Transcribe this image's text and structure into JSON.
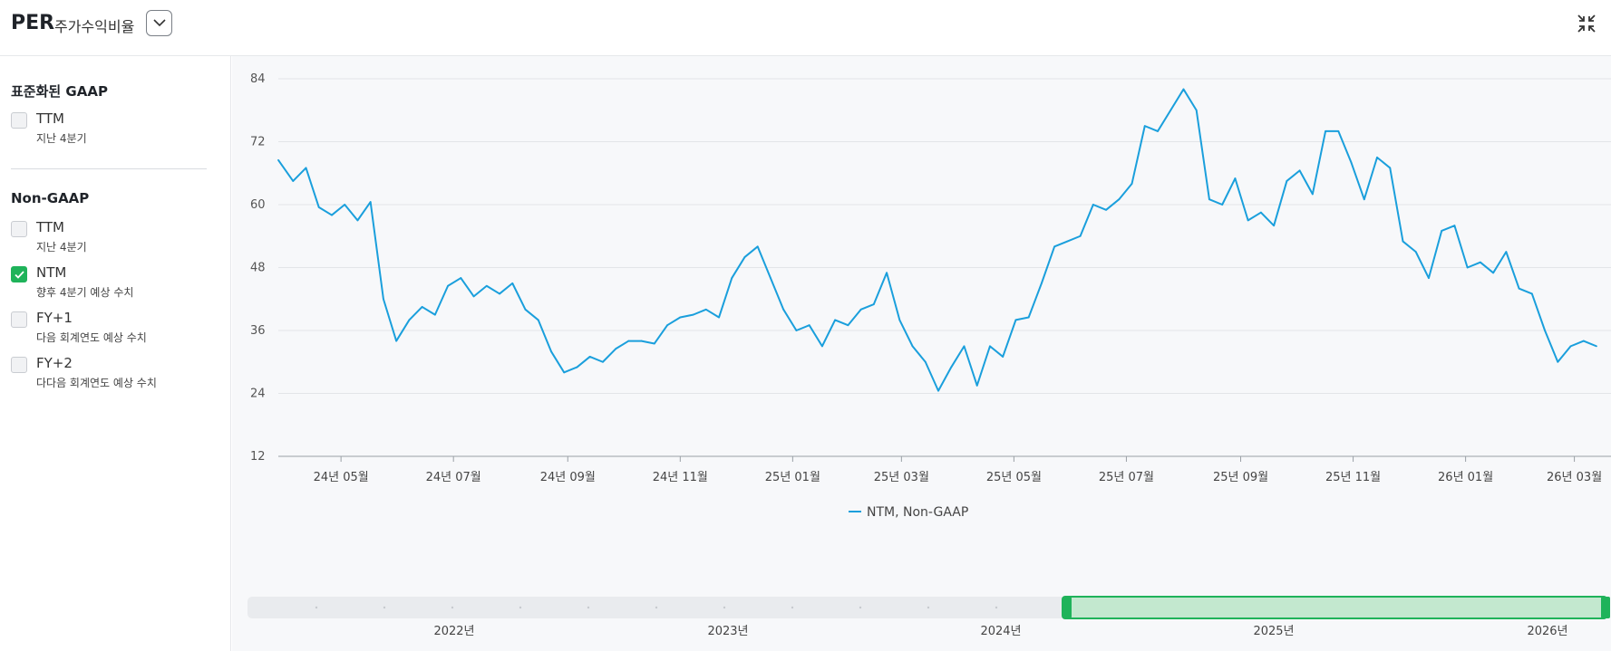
{
  "header": {
    "title": "PER",
    "subtitle": "주가수익비율",
    "dropdown_icon": "chevron-down-icon",
    "collapse_icon": "collapse-icon"
  },
  "sidebar": {
    "gaap_title": "표준화된 GAAP",
    "gaap_options": [
      {
        "label": "TTM",
        "sub": "지난 4분기",
        "checked": false
      }
    ],
    "nongaap_title": "Non-GAAP",
    "nongaap_options": [
      {
        "label": "TTM",
        "sub": "지난 4분기",
        "checked": false
      },
      {
        "label": "NTM",
        "sub": "향후 4분기 예상 수치",
        "checked": true
      },
      {
        "label": "FY+1",
        "sub": "다음 회계연도 예상 수치",
        "checked": false
      },
      {
        "label": "FY+2",
        "sub": "다다음 회계연도 예상 수치",
        "checked": false
      }
    ]
  },
  "colors": {
    "line": "#1a9fdc",
    "accent": "#1fb35a",
    "navigator_fill": "#c3e8cf"
  },
  "chart_data": {
    "type": "line",
    "ylim": [
      12,
      84
    ],
    "yticks": [
      12,
      24,
      36,
      48,
      60,
      72,
      84
    ],
    "x_ticks": [
      "24년 05월",
      "24년 07월",
      "24년 09월",
      "24년 11월",
      "25년 01월",
      "25년 03월",
      "25년 05월",
      "25년 07월",
      "25년 09월",
      "25년 11월",
      "26년 01월",
      "26년 03월"
    ],
    "series": [
      {
        "name": "NTM, Non-GAAP",
        "x": [
          "2024-03-28",
          "2024-04-05",
          "2024-04-12",
          "2024-04-19",
          "2024-04-26",
          "2024-05-03",
          "2024-05-10",
          "2024-05-17",
          "2024-05-24",
          "2024-05-31",
          "2024-06-07",
          "2024-06-14",
          "2024-06-21",
          "2024-06-28",
          "2024-07-05",
          "2024-07-12",
          "2024-07-19",
          "2024-07-26",
          "2024-08-02",
          "2024-08-09",
          "2024-08-16",
          "2024-08-23",
          "2024-08-30",
          "2024-09-06",
          "2024-09-13",
          "2024-09-20",
          "2024-09-27",
          "2024-10-04",
          "2024-10-11",
          "2024-10-18",
          "2024-10-25",
          "2024-11-01",
          "2024-11-08",
          "2024-11-15",
          "2024-11-22",
          "2024-11-29",
          "2024-12-06",
          "2024-12-13",
          "2024-12-20",
          "2024-12-27",
          "2025-01-03",
          "2025-01-10",
          "2025-01-17",
          "2025-01-24",
          "2025-01-31",
          "2025-02-07",
          "2025-02-14",
          "2025-02-21",
          "2025-02-28",
          "2025-03-07",
          "2025-03-14",
          "2025-03-21",
          "2025-03-28",
          "2025-04-04",
          "2025-04-11",
          "2025-04-18",
          "2025-04-25",
          "2025-05-02",
          "2025-05-09",
          "2025-05-16",
          "2025-05-23",
          "2025-05-30",
          "2025-06-06",
          "2025-06-13",
          "2025-06-20",
          "2025-06-27",
          "2025-07-04",
          "2025-07-11",
          "2025-07-18",
          "2025-07-25",
          "2025-08-01",
          "2025-08-08",
          "2025-08-15",
          "2025-08-22",
          "2025-08-29",
          "2025-09-05",
          "2025-09-12",
          "2025-09-19",
          "2025-09-26",
          "2025-10-03",
          "2025-10-10",
          "2025-10-17",
          "2025-10-24",
          "2025-10-31",
          "2025-11-07",
          "2025-11-14",
          "2025-11-21",
          "2025-11-28",
          "2025-12-05",
          "2025-12-12",
          "2025-12-19",
          "2025-12-26",
          "2026-01-02",
          "2026-01-09",
          "2026-01-16",
          "2026-01-23",
          "2026-01-30",
          "2026-02-06",
          "2026-02-13",
          "2026-02-20",
          "2026-02-27",
          "2026-03-06",
          "2026-03-13"
        ],
        "values": [
          68.5,
          64.5,
          67,
          59.5,
          58,
          60,
          57,
          60.5,
          42,
          34,
          38,
          40.5,
          39,
          44.5,
          46,
          42.5,
          44.5,
          43,
          45,
          40,
          38,
          32,
          28,
          29,
          31,
          30,
          32.5,
          34,
          34,
          33.5,
          37,
          38.5,
          39,
          40,
          38.5,
          46,
          50,
          52,
          46,
          40,
          36,
          37,
          33,
          38,
          37,
          40,
          41,
          47,
          38,
          33,
          30,
          24.5,
          29,
          33,
          25.5,
          33,
          31,
          38,
          38.5,
          45,
          52,
          53,
          54,
          60,
          59,
          61,
          64,
          75,
          74,
          78,
          82,
          78,
          61,
          60,
          65,
          57,
          58.5,
          56,
          64.5,
          66.5,
          62,
          74,
          74,
          68,
          61,
          69,
          67,
          53,
          51,
          46,
          55,
          56,
          48,
          49,
          47,
          51,
          44,
          43,
          36,
          30,
          33,
          34,
          33
        ]
      }
    ],
    "legend": "NTM, Non-GAAP",
    "legend_position": "bottom-center",
    "grid": true,
    "navigator_years": [
      "2022년",
      "2023년",
      "2024년",
      "2025년",
      "2026년"
    ]
  }
}
